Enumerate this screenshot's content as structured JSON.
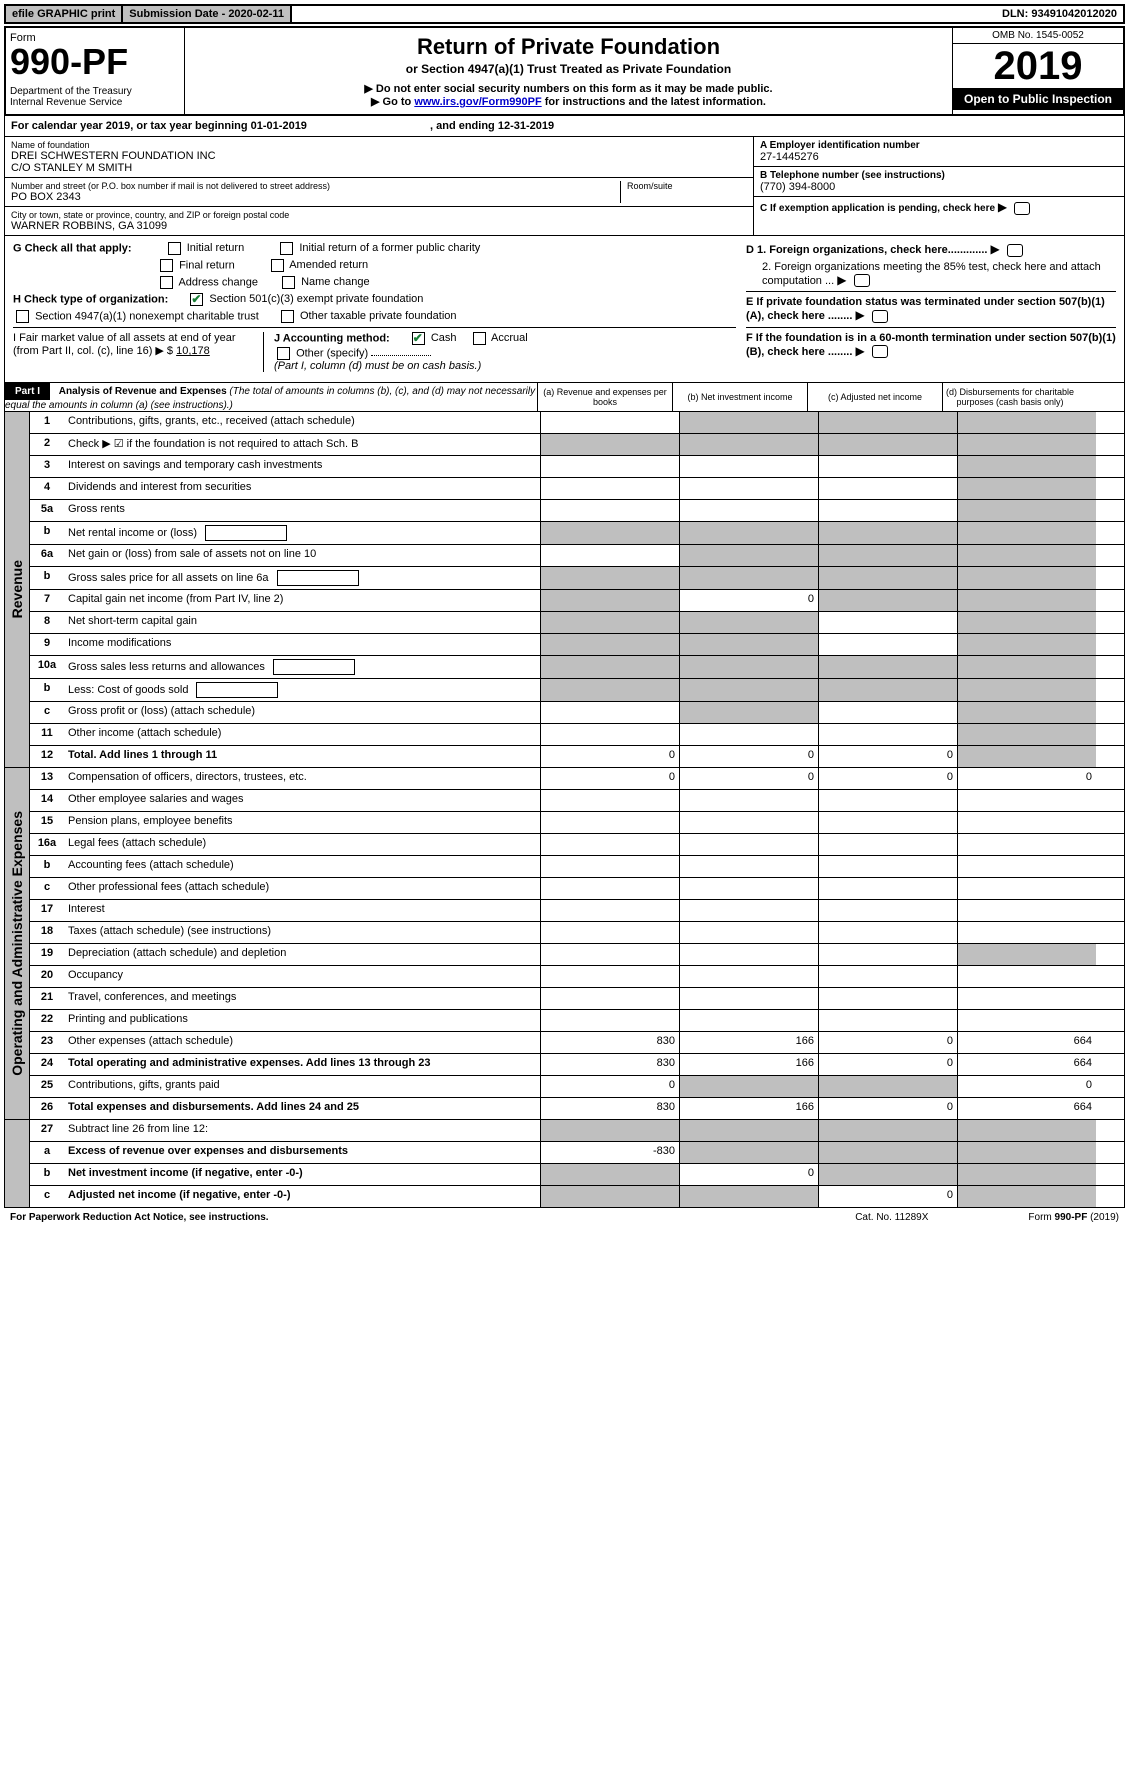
{
  "topbar": {
    "efile": "efile GRAPHIC print",
    "submission": "Submission Date - 2020-02-11",
    "dln": "DLN: 93491042012020"
  },
  "header": {
    "form_word": "Form",
    "form_num": "990-PF",
    "dept": "Department of the Treasury\nInternal Revenue Service",
    "title": "Return of Private Foundation",
    "subtitle1": "or Section 4947(a)(1) Trust Treated as Private Foundation",
    "subtitle2a": "▶ Do not enter social security numbers on this form as it may be made public.",
    "subtitle2b_pre": "▶ Go to ",
    "subtitle2b_link": "www.irs.gov/Form990PF",
    "subtitle2b_post": " for instructions and the latest information.",
    "omb": "OMB No. 1545-0052",
    "year": "2019",
    "open": "Open to Public Inspection"
  },
  "calyear": {
    "text_pre": "For calendar year 2019, or tax year beginning ",
    "begin": "01-01-2019",
    "text_mid": ", and ending ",
    "end": "12-31-2019"
  },
  "info": {
    "name_lbl": "Name of foundation",
    "name": "DREI SCHWESTERN FOUNDATION INC\nC/O STANLEY M SMITH",
    "addr_lbl": "Number and street (or P.O. box number if mail is not delivered to street address)",
    "addr": "PO BOX 2343",
    "room_lbl": "Room/suite",
    "city_lbl": "City or town, state or province, country, and ZIP or foreign postal code",
    "city": "WARNER ROBBINS, GA  31099",
    "ein_lbl": "A Employer identification number",
    "ein": "27-1445276",
    "tel_lbl": "B Telephone number (see instructions)",
    "tel": "(770) 394-8000",
    "c_lbl": "C  If exemption application is pending, check here",
    "d1": "D 1. Foreign organizations, check here.............",
    "d2": "2. Foreign organizations meeting the 85% test, check here and attach computation ...",
    "e_lbl": "E  If private foundation status was terminated under section 507(b)(1)(A), check here ........",
    "f_lbl": "F  If the foundation is in a 60-month termination under section 507(b)(1)(B), check here ........"
  },
  "checks": {
    "g_lbl": "G Check all that apply:",
    "g_initial": "Initial return",
    "g_initial_former": "Initial return of a former public charity",
    "g_final": "Final return",
    "g_amended": "Amended return",
    "g_address": "Address change",
    "g_name": "Name change",
    "h_lbl": "H Check type of organization:",
    "h_501c3": "Section 501(c)(3) exempt private foundation",
    "h_4947": "Section 4947(a)(1) nonexempt charitable trust",
    "h_other": "Other taxable private foundation",
    "i_lbl": "I Fair market value of all assets at end of year (from Part II, col. (c), line 16) ▶ $",
    "i_val": "10,178",
    "j_lbl": "J Accounting method:",
    "j_cash": "Cash",
    "j_accrual": "Accrual",
    "j_other": "Other (specify)",
    "j_note": "(Part I, column (d) must be on cash basis.)"
  },
  "part1": {
    "label": "Part I",
    "title": "Analysis of Revenue and Expenses",
    "title_note": "(The total of amounts in columns (b), (c), and (d) may not necessarily equal the amounts in column (a) (see instructions).)",
    "col_a": "(a) Revenue and expenses per books",
    "col_b": "(b) Net investment income",
    "col_c": "(c) Adjusted net income",
    "col_d": "(d) Disbursements for charitable purposes (cash basis only)"
  },
  "sections": {
    "revenue": "Revenue",
    "expenses": "Operating and Administrative Expenses"
  },
  "lines": [
    {
      "n": "1",
      "d": "Contributions, gifts, grants, etc., received (attach schedule)",
      "a": "",
      "b": "",
      "c": "",
      "sa": false,
      "sb": true,
      "sc": true,
      "sd": true
    },
    {
      "n": "2",
      "d": "Check ▶ ☑ if the foundation is not required to attach Sch. B",
      "a": "",
      "b": "",
      "c": "",
      "sa": true,
      "sb": true,
      "sc": true,
      "sd": true
    },
    {
      "n": "3",
      "d": "Interest on savings and temporary cash investments",
      "a": "",
      "b": "",
      "c": "",
      "sa": false,
      "sb": false,
      "sc": false,
      "sd": true
    },
    {
      "n": "4",
      "d": "Dividends and interest from securities",
      "a": "",
      "b": "",
      "c": "",
      "sa": false,
      "sb": false,
      "sc": false,
      "sd": true
    },
    {
      "n": "5a",
      "d": "Gross rents",
      "a": "",
      "b": "",
      "c": "",
      "sa": false,
      "sb": false,
      "sc": false,
      "sd": true
    },
    {
      "n": "b",
      "d": "Net rental income or (loss)",
      "a": "",
      "b": "",
      "c": "",
      "sa": true,
      "sb": true,
      "sc": true,
      "sd": true,
      "inset": true
    },
    {
      "n": "6a",
      "d": "Net gain or (loss) from sale of assets not on line 10",
      "a": "",
      "b": "",
      "c": "",
      "sa": false,
      "sb": true,
      "sc": true,
      "sd": true
    },
    {
      "n": "b",
      "d": "Gross sales price for all assets on line 6a",
      "a": "",
      "b": "",
      "c": "",
      "sa": true,
      "sb": true,
      "sc": true,
      "sd": true,
      "inset": true
    },
    {
      "n": "7",
      "d": "Capital gain net income (from Part IV, line 2)",
      "a": "",
      "b": "0",
      "c": "",
      "sa": true,
      "sb": false,
      "sc": true,
      "sd": true
    },
    {
      "n": "8",
      "d": "Net short-term capital gain",
      "a": "",
      "b": "",
      "c": "",
      "sa": true,
      "sb": true,
      "sc": false,
      "sd": true
    },
    {
      "n": "9",
      "d": "Income modifications",
      "a": "",
      "b": "",
      "c": "",
      "sa": true,
      "sb": true,
      "sc": false,
      "sd": true
    },
    {
      "n": "10a",
      "d": "Gross sales less returns and allowances",
      "a": "",
      "b": "",
      "c": "",
      "sa": true,
      "sb": true,
      "sc": true,
      "sd": true,
      "inset": true
    },
    {
      "n": "b",
      "d": "Less: Cost of goods sold",
      "a": "",
      "b": "",
      "c": "",
      "sa": true,
      "sb": true,
      "sc": true,
      "sd": true,
      "inset": true
    },
    {
      "n": "c",
      "d": "Gross profit or (loss) (attach schedule)",
      "a": "",
      "b": "",
      "c": "",
      "sa": false,
      "sb": true,
      "sc": false,
      "sd": true
    },
    {
      "n": "11",
      "d": "Other income (attach schedule)",
      "a": "",
      "b": "",
      "c": "",
      "sa": false,
      "sb": false,
      "sc": false,
      "sd": true
    },
    {
      "n": "12",
      "d": "Total. Add lines 1 through 11",
      "a": "0",
      "b": "0",
      "c": "0",
      "sa": false,
      "sb": false,
      "sc": false,
      "sd": true,
      "bold": true
    }
  ],
  "exp_lines": [
    {
      "n": "13",
      "d": "Compensation of officers, directors, trustees, etc.",
      "a": "0",
      "b": "0",
      "c": "0",
      "dd": "0"
    },
    {
      "n": "14",
      "d": "Other employee salaries and wages",
      "a": "",
      "b": "",
      "c": "",
      "dd": ""
    },
    {
      "n": "15",
      "d": "Pension plans, employee benefits",
      "a": "",
      "b": "",
      "c": "",
      "dd": ""
    },
    {
      "n": "16a",
      "d": "Legal fees (attach schedule)",
      "a": "",
      "b": "",
      "c": "",
      "dd": ""
    },
    {
      "n": "b",
      "d": "Accounting fees (attach schedule)",
      "a": "",
      "b": "",
      "c": "",
      "dd": ""
    },
    {
      "n": "c",
      "d": "Other professional fees (attach schedule)",
      "a": "",
      "b": "",
      "c": "",
      "dd": ""
    },
    {
      "n": "17",
      "d": "Interest",
      "a": "",
      "b": "",
      "c": "",
      "dd": ""
    },
    {
      "n": "18",
      "d": "Taxes (attach schedule) (see instructions)",
      "a": "",
      "b": "",
      "c": "",
      "dd": ""
    },
    {
      "n": "19",
      "d": "Depreciation (attach schedule) and depletion",
      "a": "",
      "b": "",
      "c": "",
      "dd": "",
      "sd": true
    },
    {
      "n": "20",
      "d": "Occupancy",
      "a": "",
      "b": "",
      "c": "",
      "dd": ""
    },
    {
      "n": "21",
      "d": "Travel, conferences, and meetings",
      "a": "",
      "b": "",
      "c": "",
      "dd": ""
    },
    {
      "n": "22",
      "d": "Printing and publications",
      "a": "",
      "b": "",
      "c": "",
      "dd": ""
    },
    {
      "n": "23",
      "d": "Other expenses (attach schedule)",
      "a": "830",
      "b": "166",
      "c": "0",
      "dd": "664"
    },
    {
      "n": "24",
      "d": "Total operating and administrative expenses. Add lines 13 through 23",
      "a": "830",
      "b": "166",
      "c": "0",
      "dd": "664",
      "bold": true
    },
    {
      "n": "25",
      "d": "Contributions, gifts, grants paid",
      "a": "0",
      "b": "",
      "c": "",
      "dd": "0",
      "sb": true,
      "sc": true
    },
    {
      "n": "26",
      "d": "Total expenses and disbursements. Add lines 24 and 25",
      "a": "830",
      "b": "166",
      "c": "0",
      "dd": "664",
      "bold": true
    }
  ],
  "net_lines": [
    {
      "n": "27",
      "d": "Subtract line 26 from line 12:",
      "a": "",
      "b": "",
      "c": "",
      "dd": "",
      "sa": true,
      "sb": true,
      "sc": true,
      "sd": true
    },
    {
      "n": "a",
      "d": "Excess of revenue over expenses and disbursements",
      "a": "-830",
      "b": "",
      "c": "",
      "dd": "",
      "bold": true,
      "sb": true,
      "sc": true,
      "sd": true
    },
    {
      "n": "b",
      "d": "Net investment income (if negative, enter -0-)",
      "a": "",
      "b": "0",
      "c": "",
      "dd": "",
      "bold": true,
      "sa": true,
      "sc": true,
      "sd": true
    },
    {
      "n": "c",
      "d": "Adjusted net income (if negative, enter -0-)",
      "a": "",
      "b": "",
      "c": "0",
      "dd": "",
      "bold": true,
      "sa": true,
      "sb": true,
      "sd": true
    }
  ],
  "footer": {
    "left": "For Paperwork Reduction Act Notice, see instructions.",
    "mid": "Cat. No. 11289X",
    "right": "Form 990-PF (2019)"
  }
}
